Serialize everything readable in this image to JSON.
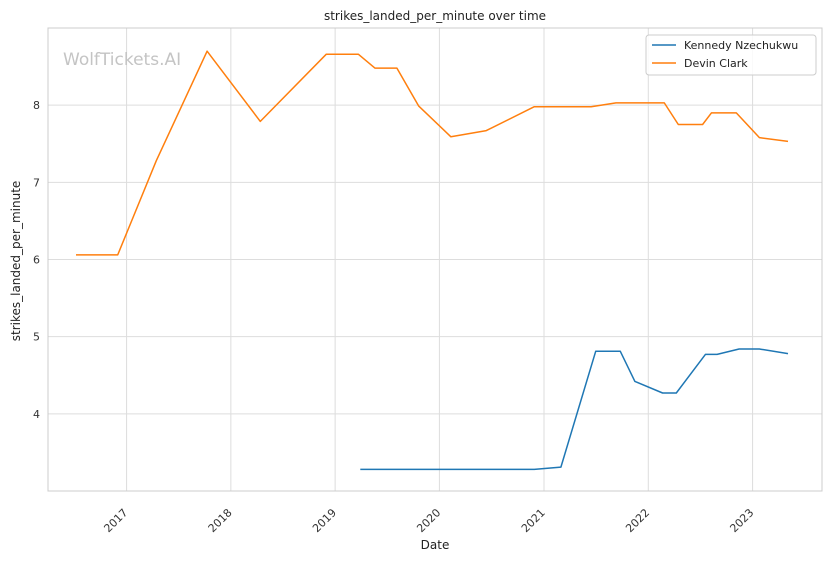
{
  "watermark": "WolfTickets.AI",
  "chart_data": {
    "type": "line",
    "title": "strikes_landed_per_minute over time",
    "xlabel": "Date",
    "ylabel": "strikes_landed_per_minute",
    "xlim": [
      "2016-04-01",
      "2023-09-01"
    ],
    "ylim": [
      3.0,
      9.0
    ],
    "x_ticks": [
      "2017",
      "2018",
      "2019",
      "2020",
      "2021",
      "2022",
      "2023"
    ],
    "y_ticks": [
      4,
      5,
      6,
      7,
      8
    ],
    "grid": true,
    "legend_position": "top-right",
    "series": [
      {
        "name": "Kennedy Nzechukwu",
        "color": "#1f77b4",
        "points": [
          [
            "2019-03-30",
            3.28
          ],
          [
            "2020-11-28",
            3.28
          ],
          [
            "2021-03-01",
            3.31
          ],
          [
            "2021-07-01",
            4.81
          ],
          [
            "2021-09-25",
            4.81
          ],
          [
            "2021-11-15",
            4.42
          ],
          [
            "2022-02-20",
            4.27
          ],
          [
            "2022-04-09",
            4.27
          ],
          [
            "2022-07-20",
            4.77
          ],
          [
            "2022-08-30",
            4.77
          ],
          [
            "2022-11-15",
            4.84
          ],
          [
            "2023-01-25",
            4.84
          ],
          [
            "2023-05-05",
            4.78
          ]
        ]
      },
      {
        "name": "Devin Clark",
        "color": "#ff7f0e",
        "points": [
          [
            "2016-07-08",
            6.06
          ],
          [
            "2016-12-01",
            6.06
          ],
          [
            "2017-04-15",
            7.28
          ],
          [
            "2017-10-10",
            8.7
          ],
          [
            "2018-04-14",
            7.79
          ],
          [
            "2018-12-01",
            8.66
          ],
          [
            "2019-03-23",
            8.66
          ],
          [
            "2019-05-20",
            8.48
          ],
          [
            "2019-08-05",
            8.48
          ],
          [
            "2019-10-20",
            7.99
          ],
          [
            "2020-02-10",
            7.59
          ],
          [
            "2020-06-13",
            7.67
          ],
          [
            "2020-11-28",
            7.98
          ],
          [
            "2021-06-15",
            7.98
          ],
          [
            "2021-09-10",
            8.03
          ],
          [
            "2022-02-26",
            8.03
          ],
          [
            "2022-04-16",
            7.75
          ],
          [
            "2022-07-10",
            7.75
          ],
          [
            "2022-08-10",
            7.9
          ],
          [
            "2022-11-05",
            7.9
          ],
          [
            "2023-01-25",
            7.58
          ],
          [
            "2023-05-05",
            7.53
          ]
        ]
      }
    ]
  }
}
